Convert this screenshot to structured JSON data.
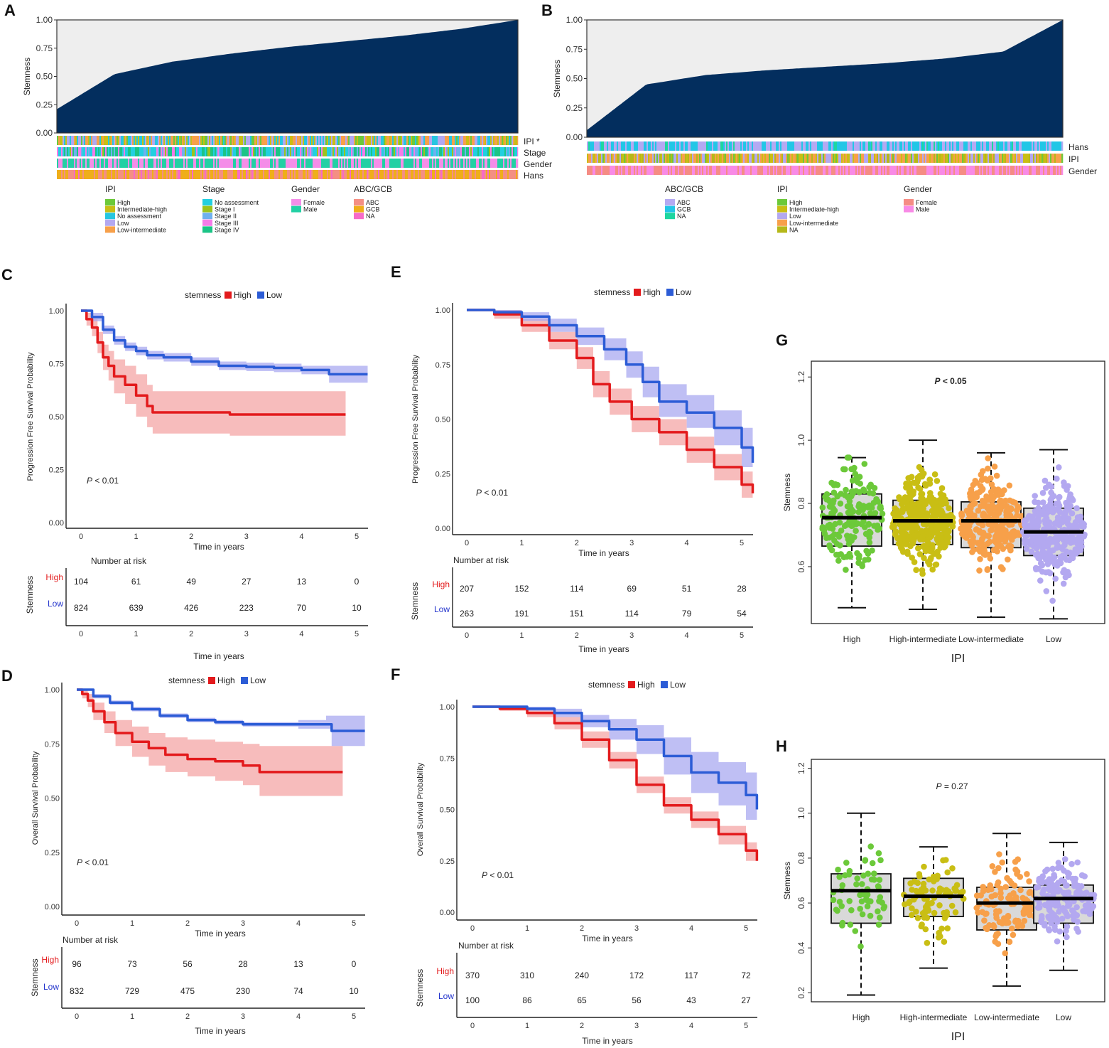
{
  "colors": {
    "navy": "#032e5e",
    "bar_bg": "#eeeeee",
    "high": "#e31a1c",
    "low": "#2c5cd6",
    "high_band": "#f4a6a6",
    "low_band": "#a9a9f0",
    "box_fill": "#d9d9d9",
    "ipi_high": "#6cc93a",
    "ipi_int_high": "#c9be14",
    "ipi_no_assess": "#26c6e0",
    "ipi_low": "#b3a8f0",
    "ipi_low_int": "#f7a04a",
    "ipi_na": "#b5b81a",
    "stage_no_assess": "#22cfe0",
    "stage_1": "#9dc31c",
    "stage_2": "#6fb0ee",
    "stage_3": "#f57be8",
    "stage_4": "#1bc486",
    "female": "#f48de8",
    "male": "#22d0a4",
    "abc": "#f48f84",
    "gcb": "#efae1a",
    "na_abcgcb": "#f76ac8",
    "b_abc": "#b4a9f2",
    "b_gcb": "#22c6e6",
    "b_na": "#1ed6a0",
    "b_female": "#f58c84",
    "b_male": "#f88ae6"
  },
  "panels": {
    "A": "A",
    "B": "B",
    "C": "C",
    "D": "D",
    "E": "E",
    "F": "F",
    "G": "G",
    "H": "H"
  },
  "chart_data": [
    {
      "panel": "A",
      "type": "bar",
      "ylabel": "Stemness",
      "ylim": [
        0,
        1
      ],
      "yticks": [
        "0.00",
        "0.25",
        "0.50",
        "0.75",
        "1.00"
      ],
      "description_curve_quantiles": [
        0.21,
        0.52,
        0.63,
        0.7,
        0.76,
        0.81,
        0.86,
        0.92,
        1.0
      ],
      "track_labels": [
        "IPI *",
        "Stage",
        "Gender",
        "Hans"
      ],
      "legend_groups": [
        {
          "title": "IPI",
          "items": [
            "High",
            "Intermediate-high",
            "No assessment",
            "Low",
            "Low-intermediate"
          ]
        },
        {
          "title": "Stage",
          "items": [
            "No assessment",
            "Stage I",
            "Stage II",
            "Stage III",
            "Stage IV"
          ]
        },
        {
          "title": "Gender",
          "items": [
            "Female",
            "Male"
          ]
        },
        {
          "title": "ABC/GCB",
          "items": [
            "ABC",
            "GCB",
            "NA"
          ]
        }
      ]
    },
    {
      "panel": "B",
      "type": "bar",
      "ylabel": "Stemness",
      "ylim": [
        0,
        1
      ],
      "yticks": [
        "0.00",
        "0.25",
        "0.50",
        "0.75",
        "1.00"
      ],
      "description_curve_quantiles": [
        0.06,
        0.45,
        0.53,
        0.57,
        0.6,
        0.63,
        0.67,
        0.73,
        1.0
      ],
      "track_labels": [
        "Hans",
        "IPI",
        "Gender"
      ],
      "legend_groups": [
        {
          "title": "ABC/GCB",
          "items": [
            "ABC",
            "GCB",
            "NA"
          ]
        },
        {
          "title": "IPI",
          "items": [
            "High",
            "Intermediate-high",
            "Low",
            "Low-intermediate",
            "NA"
          ]
        },
        {
          "title": "Gender",
          "items": [
            "Female",
            "Male"
          ]
        }
      ]
    },
    {
      "panel": "C",
      "type": "line",
      "legend_title": "stemness",
      "legend": [
        "High",
        "Low"
      ],
      "ylabel": "Progression Free Survival Probability",
      "xlabel": "Time in years",
      "xlim": [
        0,
        5
      ],
      "ylim": [
        0,
        1
      ],
      "yticks": [
        "0.00",
        "0.25",
        "0.50",
        "0.75",
        "1.00"
      ],
      "xticks": [
        "0",
        "1",
        "2",
        "3",
        "4",
        "5"
      ],
      "pvalue_prefix": "P",
      "pvalue": "< 0.01",
      "series": [
        {
          "name": "High",
          "x": [
            0,
            0.1,
            0.2,
            0.3,
            0.4,
            0.5,
            0.6,
            0.8,
            1.0,
            1.2,
            1.3,
            2.0,
            2.7,
            3.5,
            4.8
          ],
          "y": [
            1.0,
            0.96,
            0.92,
            0.85,
            0.78,
            0.74,
            0.69,
            0.65,
            0.6,
            0.55,
            0.52,
            0.52,
            0.51,
            0.51,
            0.51
          ],
          "lower": [
            1.0,
            0.93,
            0.88,
            0.8,
            0.72,
            0.67,
            0.61,
            0.56,
            0.5,
            0.45,
            0.42,
            0.42,
            0.41,
            0.41,
            0.41
          ],
          "upper": [
            1.0,
            0.99,
            0.96,
            0.9,
            0.84,
            0.81,
            0.77,
            0.74,
            0.7,
            0.65,
            0.62,
            0.62,
            0.62,
            0.62,
            0.62
          ]
        },
        {
          "name": "Low",
          "x": [
            0,
            0.2,
            0.4,
            0.6,
            0.8,
            1.0,
            1.2,
            1.5,
            2.0,
            2.5,
            3.0,
            3.5,
            4.0,
            4.5,
            5.0,
            5.2
          ],
          "y": [
            1.0,
            0.97,
            0.91,
            0.86,
            0.83,
            0.81,
            0.79,
            0.78,
            0.76,
            0.74,
            0.735,
            0.73,
            0.72,
            0.7,
            0.7,
            0.7
          ],
          "lower": [
            1.0,
            0.95,
            0.89,
            0.84,
            0.81,
            0.79,
            0.77,
            0.76,
            0.74,
            0.72,
            0.715,
            0.71,
            0.7,
            0.66,
            0.66,
            0.66
          ],
          "upper": [
            1.0,
            0.99,
            0.93,
            0.88,
            0.85,
            0.83,
            0.81,
            0.8,
            0.78,
            0.76,
            0.755,
            0.75,
            0.74,
            0.74,
            0.74,
            0.74
          ]
        }
      ],
      "risk_title": "Number at risk",
      "risk_ylabel": "Stemness",
      "risk_xlabel": "Time in years",
      "risk_rows": [
        {
          "name": "High",
          "values": [
            "104",
            "61",
            "49",
            "27",
            "13",
            "0"
          ]
        },
        {
          "name": "Low",
          "values": [
            "824",
            "639",
            "426",
            "223",
            "70",
            "10"
          ]
        }
      ]
    },
    {
      "panel": "D",
      "type": "line",
      "legend_title": "stemness",
      "legend": [
        "High",
        "Low"
      ],
      "ylabel": "Overall Survival Probability",
      "xlabel": "Time in years",
      "xlim": [
        0,
        5
      ],
      "ylim": [
        0,
        1
      ],
      "yticks": [
        "0.00",
        "0.25",
        "0.50",
        "0.75",
        "1.00"
      ],
      "xticks": [
        "0",
        "1",
        "2",
        "3",
        "4",
        "5"
      ],
      "pvalue_prefix": "P",
      "pvalue": "< 0.01",
      "series": [
        {
          "name": "High",
          "x": [
            0,
            0.1,
            0.2,
            0.3,
            0.5,
            0.7,
            1.0,
            1.3,
            1.6,
            2.0,
            2.5,
            3.0,
            3.3,
            4.0,
            4.8
          ],
          "y": [
            1.0,
            0.98,
            0.95,
            0.9,
            0.85,
            0.8,
            0.76,
            0.73,
            0.7,
            0.68,
            0.67,
            0.65,
            0.62,
            0.62,
            0.62
          ],
          "lower": [
            1.0,
            0.96,
            0.92,
            0.86,
            0.8,
            0.74,
            0.69,
            0.65,
            0.62,
            0.6,
            0.58,
            0.56,
            0.51,
            0.51,
            0.51
          ],
          "upper": [
            1.0,
            1.0,
            0.98,
            0.94,
            0.9,
            0.86,
            0.83,
            0.8,
            0.78,
            0.77,
            0.76,
            0.75,
            0.74,
            0.74,
            0.74
          ]
        },
        {
          "name": "Low",
          "x": [
            0,
            0.3,
            0.6,
            1.0,
            1.5,
            2.0,
            2.5,
            3.0,
            3.5,
            4.0,
            4.5,
            4.6,
            5.2
          ],
          "y": [
            1.0,
            0.97,
            0.94,
            0.91,
            0.88,
            0.86,
            0.85,
            0.84,
            0.84,
            0.84,
            0.84,
            0.81,
            0.81
          ],
          "lower": [
            1.0,
            0.96,
            0.93,
            0.9,
            0.87,
            0.85,
            0.84,
            0.83,
            0.83,
            0.82,
            0.82,
            0.74,
            0.74
          ],
          "upper": [
            1.0,
            0.98,
            0.95,
            0.92,
            0.89,
            0.87,
            0.86,
            0.85,
            0.85,
            0.86,
            0.88,
            0.88,
            0.88
          ]
        }
      ],
      "risk_title": "Number at risk",
      "risk_ylabel": "Stemness",
      "risk_xlabel": "Time in years",
      "risk_rows": [
        {
          "name": "High",
          "values": [
            "96",
            "73",
            "56",
            "28",
            "13",
            "0"
          ]
        },
        {
          "name": "Low",
          "values": [
            "832",
            "729",
            "475",
            "230",
            "74",
            "10"
          ]
        }
      ]
    },
    {
      "panel": "E",
      "type": "line",
      "legend_title": "stemness",
      "legend": [
        "High",
        "Low"
      ],
      "ylabel": "Progression Free Survival Probability",
      "xlabel": "Time in years",
      "xlim": [
        0,
        5
      ],
      "ylim": [
        0,
        1
      ],
      "yticks": [
        "0.00",
        "0.25",
        "0.50",
        "0.75",
        "1.00"
      ],
      "xticks": [
        "0",
        "1",
        "2",
        "3",
        "4",
        "5"
      ],
      "pvalue_prefix": "P",
      "pvalue": "< 0.01",
      "series": [
        {
          "name": "High",
          "x": [
            0,
            0.5,
            1.0,
            1.5,
            2.0,
            2.3,
            2.6,
            3.0,
            3.5,
            4.0,
            4.5,
            5.0,
            5.2
          ],
          "y": [
            1.0,
            0.98,
            0.93,
            0.86,
            0.78,
            0.66,
            0.58,
            0.5,
            0.44,
            0.36,
            0.28,
            0.2,
            0.16
          ],
          "lower": [
            1.0,
            0.96,
            0.9,
            0.82,
            0.73,
            0.6,
            0.52,
            0.44,
            0.38,
            0.3,
            0.22,
            0.14,
            0.11
          ],
          "upper": [
            1.0,
            1.0,
            0.96,
            0.9,
            0.83,
            0.72,
            0.64,
            0.56,
            0.5,
            0.42,
            0.34,
            0.26,
            0.21
          ]
        },
        {
          "name": "Low",
          "x": [
            0,
            0.5,
            1.0,
            1.5,
            2.0,
            2.5,
            2.9,
            3.2,
            3.5,
            4.0,
            4.5,
            5.0,
            5.2
          ],
          "y": [
            1.0,
            0.99,
            0.97,
            0.93,
            0.88,
            0.82,
            0.75,
            0.67,
            0.58,
            0.53,
            0.46,
            0.37,
            0.3
          ],
          "lower": [
            1.0,
            0.98,
            0.95,
            0.9,
            0.84,
            0.77,
            0.69,
            0.6,
            0.51,
            0.46,
            0.38,
            0.28,
            0.22
          ],
          "upper": [
            1.0,
            1.0,
            0.99,
            0.96,
            0.92,
            0.87,
            0.81,
            0.74,
            0.66,
            0.61,
            0.54,
            0.46,
            0.4
          ]
        }
      ],
      "risk_title": "Number at risk",
      "risk_ylabel": "Stemness",
      "risk_xlabel": "Time in years",
      "risk_rows": [
        {
          "name": "High",
          "values": [
            "207",
            "152",
            "114",
            "69",
            "51",
            "28"
          ]
        },
        {
          "name": "Low",
          "values": [
            "263",
            "191",
            "151",
            "114",
            "79",
            "54"
          ]
        }
      ]
    },
    {
      "panel": "F",
      "type": "line",
      "legend_title": "stemness",
      "legend": [
        "High",
        "Low"
      ],
      "ylabel": "Overall Survival Probability",
      "xlabel": "Time in years",
      "xlim": [
        0,
        5
      ],
      "ylim": [
        0,
        1
      ],
      "yticks": [
        "0.00",
        "0.25",
        "0.50",
        "0.75",
        "1.00"
      ],
      "xticks": [
        "0",
        "1",
        "2",
        "3",
        "4",
        "5"
      ],
      "pvalue_prefix": "P",
      "pvalue": "< 0.01",
      "series": [
        {
          "name": "High",
          "x": [
            0,
            0.5,
            1.0,
            1.5,
            2.0,
            2.5,
            3.0,
            3.5,
            4.0,
            4.5,
            5.0,
            5.2
          ],
          "y": [
            1.0,
            0.99,
            0.97,
            0.92,
            0.84,
            0.74,
            0.62,
            0.52,
            0.45,
            0.38,
            0.3,
            0.25
          ],
          "lower": [
            1.0,
            0.98,
            0.95,
            0.89,
            0.8,
            0.7,
            0.58,
            0.48,
            0.41,
            0.33,
            0.25,
            0.21
          ],
          "upper": [
            1.0,
            1.0,
            0.99,
            0.95,
            0.88,
            0.78,
            0.66,
            0.56,
            0.49,
            0.42,
            0.34,
            0.29
          ]
        },
        {
          "name": "Low",
          "x": [
            0,
            0.5,
            1.0,
            1.5,
            2.0,
            2.5,
            3.0,
            3.5,
            4.0,
            4.5,
            5.0,
            5.2
          ],
          "y": [
            1.0,
            1.0,
            0.99,
            0.97,
            0.93,
            0.89,
            0.84,
            0.76,
            0.68,
            0.63,
            0.57,
            0.5
          ],
          "lower": [
            1.0,
            1.0,
            0.98,
            0.95,
            0.9,
            0.84,
            0.77,
            0.67,
            0.58,
            0.52,
            0.45,
            0.38
          ],
          "upper": [
            1.0,
            1.0,
            1.0,
            0.99,
            0.96,
            0.94,
            0.91,
            0.85,
            0.78,
            0.73,
            0.68,
            0.63
          ]
        }
      ],
      "risk_title": "Number at risk",
      "risk_ylabel": "Stemness",
      "risk_xlabel": "Time in years",
      "risk_rows": [
        {
          "name": "High",
          "values": [
            "370",
            "310",
            "240",
            "172",
            "117",
            "72"
          ]
        },
        {
          "name": "Low",
          "values": [
            "100",
            "86",
            "65",
            "56",
            "43",
            "27"
          ]
        }
      ]
    },
    {
      "panel": "G",
      "type": "box",
      "xlabel": "IPI",
      "ylabel": "Stemness",
      "ylim": [
        0.42,
        1.25
      ],
      "yticks": [
        "0.6",
        "0.8",
        "1.0",
        "1.2"
      ],
      "categories": [
        "High",
        "High-intermediate",
        "Low-intermediate",
        "Low"
      ],
      "pvalue_prefix": "P",
      "pvalue": "< 0.05",
      "boxes": [
        {
          "min": 0.47,
          "q1": 0.665,
          "median": 0.755,
          "q3": 0.83,
          "max": 0.945,
          "n": 170
        },
        {
          "min": 0.465,
          "q1": 0.67,
          "median": 0.745,
          "q3": 0.81,
          "max": 1.0,
          "n": 330
        },
        {
          "min": 0.44,
          "q1": 0.66,
          "median": 0.745,
          "q3": 0.805,
          "max": 0.96,
          "n": 280
        },
        {
          "min": 0.435,
          "q1": 0.635,
          "median": 0.71,
          "q3": 0.785,
          "max": 0.97,
          "n": 320
        }
      ]
    },
    {
      "panel": "H",
      "type": "box",
      "xlabel": "IPI",
      "ylabel": "Stemness",
      "ylim": [
        0.16,
        1.24
      ],
      "yticks": [
        "0.2",
        "0.4",
        "0.6",
        "0.8",
        "1.0",
        "1.2"
      ],
      "categories": [
        "High",
        "High-intermediate",
        "Low-intermediate",
        "Low"
      ],
      "pvalue_prefix": "P",
      "pvalue": "= 0.27",
      "boxes": [
        {
          "min": 0.19,
          "q1": 0.51,
          "median": 0.655,
          "q3": 0.73,
          "max": 1.0,
          "n": 60
        },
        {
          "min": 0.31,
          "q1": 0.54,
          "median": 0.63,
          "q3": 0.71,
          "max": 0.85,
          "n": 90
        },
        {
          "min": 0.23,
          "q1": 0.48,
          "median": 0.6,
          "q3": 0.67,
          "max": 0.91,
          "n": 110
        },
        {
          "min": 0.3,
          "q1": 0.51,
          "median": 0.62,
          "q3": 0.68,
          "max": 0.87,
          "n": 170
        }
      ]
    }
  ]
}
